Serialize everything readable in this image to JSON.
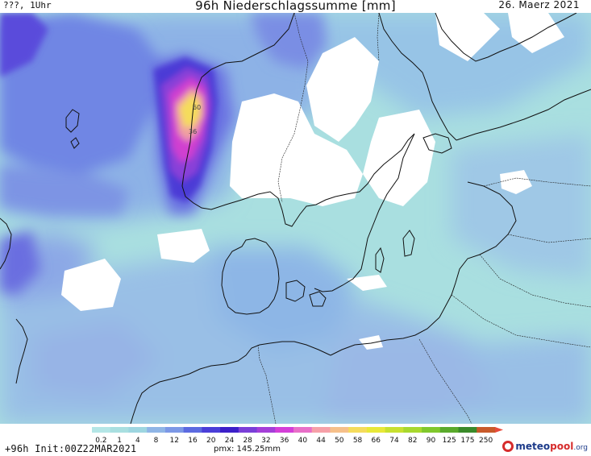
{
  "header": {
    "left_text": "???, 1Uhr",
    "title": "96h Niederschlagssumme [mm]",
    "date": "26. Maerz 2021"
  },
  "map": {
    "region": "Scandinavia / North Sea / Baltic Sea",
    "max_value_labels": [
      "60",
      "36"
    ]
  },
  "legend": {
    "labels": [
      "0.2",
      "1",
      "4",
      "8",
      "12",
      "16",
      "20",
      "24",
      "28",
      "32",
      "36",
      "40",
      "44",
      "50",
      "58",
      "66",
      "74",
      "82",
      "90",
      "125",
      "175",
      "250"
    ],
    "colors": [
      "#b4e6e6",
      "#a9dfe0",
      "#9ed6e0",
      "#8fb5e6",
      "#7c98e6",
      "#5c6ae0",
      "#4a3ed8",
      "#3c1fc9",
      "#7a3fd8",
      "#a43fd8",
      "#d43fd8",
      "#e86fc8",
      "#f6a0a8",
      "#f6c08a",
      "#f5dc5c",
      "#e8e838",
      "#c8e030",
      "#a8d82e",
      "#80c82c",
      "#5aaa2c",
      "#3a8a2a",
      "#c85a2a"
    ]
  },
  "footer": {
    "init_text": "+96h  Init:00Z22MAR2021",
    "pmx_text": "pmx: 145.25mm",
    "logo_meteo": "meteo",
    "logo_pool": "pool",
    "logo_org": ".org"
  }
}
